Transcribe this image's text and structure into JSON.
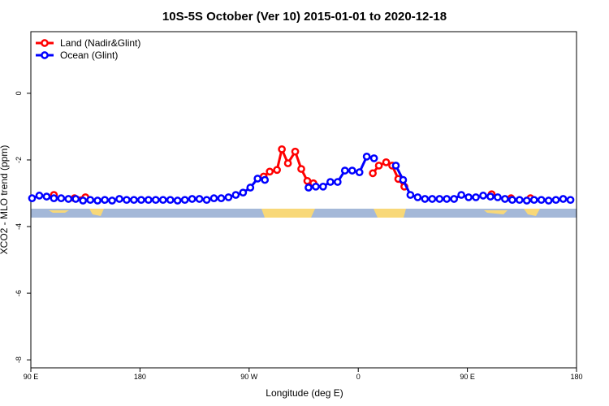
{
  "chart_data": {
    "type": "line",
    "title": "10S-5S October (Ver 10)   2015-01-01 to 2020-12-18",
    "xlabel": "Longitude (deg E)",
    "ylabel": "XCO2 - MLO trend (ppm)",
    "xlim": [
      90,
      540
    ],
    "ylim": [
      -8.24,
      1.85
    ],
    "xticks": [
      {
        "value": 90,
        "label": "90 E"
      },
      180,
      {
        "value": 270,
        "label": "90 W"
      },
      {
        "value": 360,
        "label": "0"
      },
      {
        "value": 450,
        "label": "90 E"
      },
      {
        "value": 540,
        "label": "180"
      }
    ],
    "yticks": [
      -8,
      -6,
      -4,
      -2,
      0
    ],
    "legend": "top-left",
    "series": [
      {
        "name": "Land (Nadir&Glint)",
        "color": "#ff0000",
        "x": [
          109,
          117,
          126,
          135,
          200,
          282,
          287,
          293,
          297,
          302,
          308,
          313,
          318,
          323,
          345,
          372,
          377,
          383,
          388,
          393,
          398,
          430,
          470,
          478,
          486,
          494,
          502
        ],
        "values": [
          -3.05,
          null,
          -3.15,
          -3.12,
          null,
          -2.5,
          -2.35,
          -2.3,
          -1.68,
          -2.1,
          -1.75,
          -2.27,
          -2.63,
          -2.7,
          null,
          -2.4,
          -2.17,
          -2.07,
          -2.17,
          -2.57,
          -2.8,
          null,
          -3.03,
          null,
          -3.15,
          null,
          -3.15
        ]
      },
      {
        "name": "Ocean (Glint)",
        "color": "#0000ff",
        "x": [
          91,
          97,
          103,
          109,
          115,
          121,
          127,
          133,
          139,
          145,
          151,
          157,
          163,
          169,
          175,
          181,
          187,
          193,
          199,
          205,
          211,
          217,
          223,
          229,
          235,
          241,
          247,
          253,
          259,
          265,
          271,
          277,
          283,
          289,
          295,
          301,
          307,
          313,
          319,
          325,
          331,
          337,
          343,
          349,
          355,
          361,
          367,
          373,
          379,
          385,
          391,
          397,
          403,
          409,
          415,
          421,
          427,
          433,
          439,
          445,
          451,
          457,
          463,
          469,
          475,
          481,
          487,
          493,
          499,
          505,
          511,
          517,
          523,
          529,
          535
        ],
        "values": [
          -3.15,
          -3.07,
          -3.1,
          -3.15,
          -3.15,
          -3.17,
          -3.17,
          -3.22,
          -3.2,
          -3.22,
          -3.2,
          -3.22,
          -3.17,
          -3.2,
          -3.2,
          -3.2,
          -3.2,
          -3.2,
          -3.2,
          -3.2,
          -3.22,
          -3.2,
          -3.17,
          -3.17,
          -3.2,
          -3.15,
          -3.15,
          -3.12,
          -3.05,
          -2.98,
          -2.83,
          -2.56,
          -2.6,
          null,
          null,
          null,
          null,
          null,
          -2.83,
          -2.8,
          -2.8,
          -2.66,
          -2.66,
          -2.32,
          -2.32,
          -2.37,
          -1.9,
          -1.95,
          null,
          null,
          -2.17,
          -2.6,
          -3.05,
          -3.12,
          -3.17,
          -3.17,
          -3.17,
          -3.17,
          -3.17,
          -3.05,
          -3.12,
          -3.12,
          -3.07,
          -3.1,
          -3.12,
          -3.17,
          -3.2,
          -3.2,
          -3.22,
          -3.2,
          -3.2,
          -3.22,
          -3.2,
          -3.17,
          -3.2
        ]
      }
    ]
  }
}
